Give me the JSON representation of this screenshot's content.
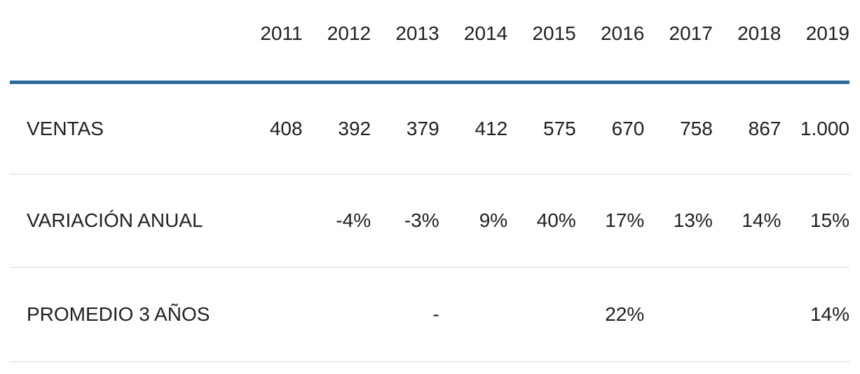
{
  "chart_data": {
    "type": "table",
    "title": "",
    "columns": [
      "2011",
      "2012",
      "2013",
      "2014",
      "2015",
      "2016",
      "2017",
      "2018",
      "2019"
    ],
    "rows": [
      {
        "label": "VENTAS",
        "values": [
          "408",
          "392",
          "379",
          "412",
          "575",
          "670",
          "758",
          "867",
          "1.000"
        ]
      },
      {
        "label": "VARIACIÓN ANUAL",
        "values": [
          "",
          "-4%",
          "-3%",
          "9%",
          "40%",
          "17%",
          "13%",
          "14%",
          "15%"
        ]
      },
      {
        "label": "PROMEDIO 3 AÑOS",
        "values": [
          "",
          "",
          "-",
          "",
          "",
          "22%",
          "",
          "",
          "14%"
        ]
      }
    ],
    "layout": {
      "value_alignment": "right",
      "header_rule_color": "#2a6a9e",
      "row_divider_color": "#dadada",
      "text_color": "#212121"
    }
  },
  "colors": {
    "accent_blue": "#2a6a9e",
    "divider_gray": "#dadada",
    "text": "#212121",
    "background": "#ffffff"
  }
}
